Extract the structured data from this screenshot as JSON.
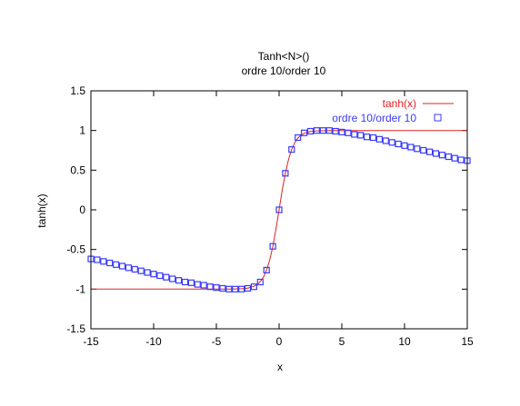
{
  "chart_data": {
    "type": "line",
    "title": "Tanh<N>()",
    "subtitle": "ordre 10/order 10",
    "xlabel": "x",
    "ylabel": "tanh(x)",
    "xlim": [
      -15,
      15
    ],
    "ylim": [
      -1.5,
      1.5
    ],
    "xticks": [
      -15,
      -10,
      -5,
      0,
      5,
      10,
      15
    ],
    "xtick_labels": [
      "-15",
      "-10",
      "-5",
      "0",
      "5",
      "10",
      "15"
    ],
    "yticks": [
      -1.5,
      -1,
      -0.5,
      0,
      0.5,
      1,
      1.5
    ],
    "ytick_labels": [
      "-1.5",
      "-1",
      "-0.5",
      "0",
      "0.5",
      "1",
      "1.5"
    ],
    "grid": false,
    "legend_position": "top-right",
    "series": [
      {
        "name": "tanh(x)",
        "style": "line",
        "color": "#e02020",
        "x": [
          -15,
          -5,
          -4,
          -3,
          -2.5,
          -2,
          -1.75,
          -1.5,
          -1.25,
          -1,
          -0.75,
          -0.5,
          -0.25,
          0,
          0.25,
          0.5,
          0.75,
          1,
          1.25,
          1.5,
          1.75,
          2,
          2.5,
          3,
          4,
          5,
          15
        ],
        "y": [
          -1,
          -0.9999,
          -0.9993,
          -0.9951,
          -0.9866,
          -0.964,
          -0.9414,
          -0.9051,
          -0.8483,
          -0.7616,
          -0.6351,
          -0.4621,
          -0.2449,
          0,
          0.2449,
          0.4621,
          0.6351,
          0.7616,
          0.8483,
          0.9051,
          0.9414,
          0.964,
          0.9866,
          0.9951,
          0.9993,
          0.9999,
          1
        ]
      },
      {
        "name": "ordre 10/order 10",
        "style": "markers",
        "marker": "square",
        "color": "#3a3aff",
        "x": [
          -15,
          -14.5,
          -14,
          -13.5,
          -13,
          -12.5,
          -12,
          -11.5,
          -11,
          -10.5,
          -10,
          -9.5,
          -9,
          -8.5,
          -8,
          -7.5,
          -7,
          -6.5,
          -6,
          -5.5,
          -5,
          -4.5,
          -4,
          -3.5,
          -3,
          -2.5,
          -2,
          -1.5,
          -1,
          -0.5,
          0,
          0.5,
          1,
          1.5,
          2,
          2.5,
          3,
          3.5,
          4,
          4.5,
          5,
          5.5,
          6,
          6.5,
          7,
          7.5,
          8,
          8.5,
          9,
          9.5,
          10,
          10.5,
          11,
          11.5,
          12,
          12.5,
          13,
          13.5,
          14,
          14.5,
          15
        ],
        "y": [
          -0.62,
          -0.63,
          -0.65,
          -0.67,
          -0.69,
          -0.71,
          -0.73,
          -0.75,
          -0.77,
          -0.79,
          -0.81,
          -0.83,
          -0.85,
          -0.87,
          -0.89,
          -0.91,
          -0.92,
          -0.94,
          -0.95,
          -0.97,
          -0.98,
          -0.99,
          -1.0,
          -1.0,
          -1.0,
          -0.99,
          -0.97,
          -0.91,
          -0.76,
          -0.46,
          0,
          0.46,
          0.76,
          0.91,
          0.97,
          0.99,
          1.0,
          1.0,
          1.0,
          0.99,
          0.98,
          0.97,
          0.95,
          0.94,
          0.92,
          0.91,
          0.89,
          0.87,
          0.85,
          0.83,
          0.81,
          0.79,
          0.77,
          0.75,
          0.73,
          0.71,
          0.69,
          0.67,
          0.65,
          0.63,
          0.62
        ]
      }
    ]
  }
}
